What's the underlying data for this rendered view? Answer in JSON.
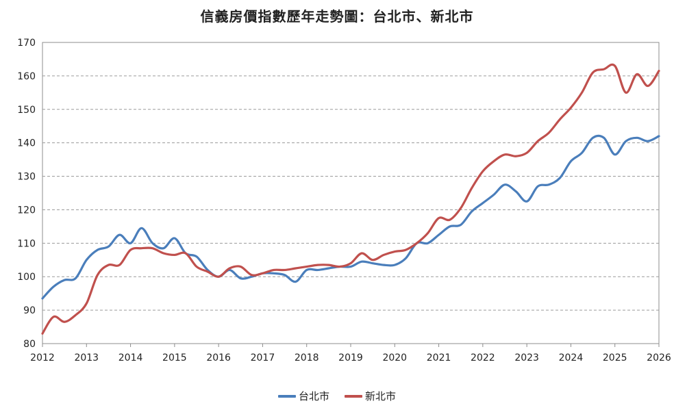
{
  "chart_data": {
    "type": "line",
    "title": "信義房價指數歷年走勢圖：台北市、新北市",
    "xlabel": "",
    "ylabel": "",
    "xlim": [
      2012,
      2026
    ],
    "ylim": [
      80,
      170
    ],
    "x_ticks": [
      "2012",
      "2013",
      "2014",
      "2015",
      "2016",
      "2017",
      "2018",
      "2019",
      "2020",
      "2021",
      "2022",
      "2023",
      "2024",
      "2025",
      "2026"
    ],
    "y_ticks": [
      "80",
      "90",
      "100",
      "110",
      "120",
      "130",
      "140",
      "150",
      "160",
      "170"
    ],
    "grid": true,
    "legend_position": "bottom",
    "series": [
      {
        "name": "台北市",
        "color": "#4a7ebb",
        "points": [
          [
            2012.0,
            93.5
          ],
          [
            2012.25,
            97
          ],
          [
            2012.5,
            99
          ],
          [
            2012.75,
            99.5
          ],
          [
            2013.0,
            105
          ],
          [
            2013.25,
            108
          ],
          [
            2013.5,
            109
          ],
          [
            2013.75,
            112.5
          ],
          [
            2014.0,
            110
          ],
          [
            2014.25,
            114.5
          ],
          [
            2014.5,
            110
          ],
          [
            2014.75,
            108.5
          ],
          [
            2015.0,
            111.5
          ],
          [
            2015.25,
            107
          ],
          [
            2015.5,
            106
          ],
          [
            2015.75,
            102
          ],
          [
            2016.0,
            100
          ],
          [
            2016.25,
            102
          ],
          [
            2016.5,
            99.5
          ],
          [
            2016.75,
            100
          ],
          [
            2017.0,
            101
          ],
          [
            2017.25,
            101
          ],
          [
            2017.5,
            100.5
          ],
          [
            2017.75,
            98.5
          ],
          [
            2018.0,
            102
          ],
          [
            2018.25,
            102
          ],
          [
            2018.5,
            102.5
          ],
          [
            2018.75,
            103
          ],
          [
            2019.0,
            103
          ],
          [
            2019.25,
            104.5
          ],
          [
            2019.5,
            104
          ],
          [
            2019.75,
            103.5
          ],
          [
            2020.0,
            103.5
          ],
          [
            2020.25,
            105.5
          ],
          [
            2020.5,
            110
          ],
          [
            2020.75,
            110
          ],
          [
            2021.0,
            112.5
          ],
          [
            2021.25,
            115
          ],
          [
            2021.5,
            115.5
          ],
          [
            2021.75,
            119.5
          ],
          [
            2022.0,
            122
          ],
          [
            2022.25,
            124.5
          ],
          [
            2022.5,
            127.5
          ],
          [
            2022.75,
            125.5
          ],
          [
            2023.0,
            122.5
          ],
          [
            2023.25,
            127
          ],
          [
            2023.5,
            127.5
          ],
          [
            2023.75,
            129.5
          ],
          [
            2024.0,
            134.5
          ],
          [
            2024.25,
            137
          ],
          [
            2024.5,
            141.5
          ],
          [
            2024.75,
            141.5
          ],
          [
            2025.0,
            136.5
          ],
          [
            2025.25,
            140.5
          ],
          [
            2025.5,
            141.5
          ],
          [
            2025.75,
            140.5
          ],
          [
            2026.0,
            142
          ]
        ]
      },
      {
        "name": "新北市",
        "color": "#c0504d",
        "points": [
          [
            2012.0,
            83
          ],
          [
            2012.25,
            88
          ],
          [
            2012.5,
            86.5
          ],
          [
            2012.75,
            88.5
          ],
          [
            2013.0,
            92
          ],
          [
            2013.25,
            100.5
          ],
          [
            2013.5,
            103.5
          ],
          [
            2013.75,
            103.5
          ],
          [
            2014.0,
            108
          ],
          [
            2014.25,
            108.5
          ],
          [
            2014.5,
            108.5
          ],
          [
            2014.75,
            107
          ],
          [
            2015.0,
            106.5
          ],
          [
            2015.25,
            107
          ],
          [
            2015.5,
            103
          ],
          [
            2015.75,
            101.5
          ],
          [
            2016.0,
            100
          ],
          [
            2016.25,
            102.5
          ],
          [
            2016.5,
            103
          ],
          [
            2016.75,
            100.5
          ],
          [
            2017.0,
            101
          ],
          [
            2017.25,
            102
          ],
          [
            2017.5,
            102
          ],
          [
            2017.75,
            102.5
          ],
          [
            2018.0,
            103
          ],
          [
            2018.25,
            103.5
          ],
          [
            2018.5,
            103.5
          ],
          [
            2018.75,
            103
          ],
          [
            2019.0,
            104
          ],
          [
            2019.25,
            107
          ],
          [
            2019.5,
            105
          ],
          [
            2019.75,
            106.5
          ],
          [
            2020.0,
            107.5
          ],
          [
            2020.25,
            108
          ],
          [
            2020.5,
            110
          ],
          [
            2020.75,
            113
          ],
          [
            2021.0,
            117.5
          ],
          [
            2021.25,
            117
          ],
          [
            2021.5,
            120.5
          ],
          [
            2021.75,
            126.5
          ],
          [
            2022.0,
            131.5
          ],
          [
            2022.25,
            134.5
          ],
          [
            2022.5,
            136.5
          ],
          [
            2022.75,
            136
          ],
          [
            2023.0,
            137
          ],
          [
            2023.25,
            140.5
          ],
          [
            2023.5,
            143
          ],
          [
            2023.75,
            147
          ],
          [
            2024.0,
            150.5
          ],
          [
            2024.25,
            155
          ],
          [
            2024.5,
            161
          ],
          [
            2024.75,
            162
          ],
          [
            2025.0,
            163
          ],
          [
            2025.25,
            155
          ],
          [
            2025.5,
            160.5
          ],
          [
            2025.75,
            157
          ],
          [
            2026.0,
            161.5
          ]
        ]
      }
    ]
  }
}
